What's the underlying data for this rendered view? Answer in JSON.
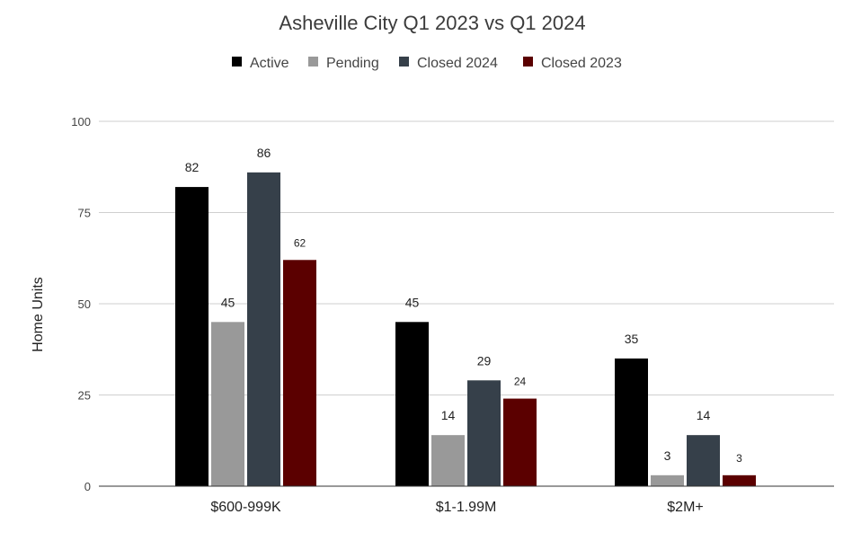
{
  "chart_data": {
    "type": "bar",
    "title": "Asheville City Q1 2023 vs Q1 2024",
    "xlabel": "",
    "ylabel": "Home Units",
    "ylim": [
      0,
      100
    ],
    "yticks": [
      0,
      25,
      50,
      75,
      100
    ],
    "grid": true,
    "legend_position": "top",
    "categories": [
      "$600-999K",
      "$1-1.99M",
      "$2M+"
    ],
    "series": [
      {
        "name": "Active",
        "color": "#000000",
        "values": [
          82,
          45,
          35
        ]
      },
      {
        "name": "Pending",
        "color": "#999999",
        "values": [
          45,
          14,
          3
        ]
      },
      {
        "name": "Closed 2024",
        "color": "#36404a",
        "values": [
          86,
          29,
          14
        ]
      },
      {
        "name": "Closed 2023",
        "color": "#5b0000",
        "values": [
          62,
          24,
          3
        ]
      }
    ]
  }
}
